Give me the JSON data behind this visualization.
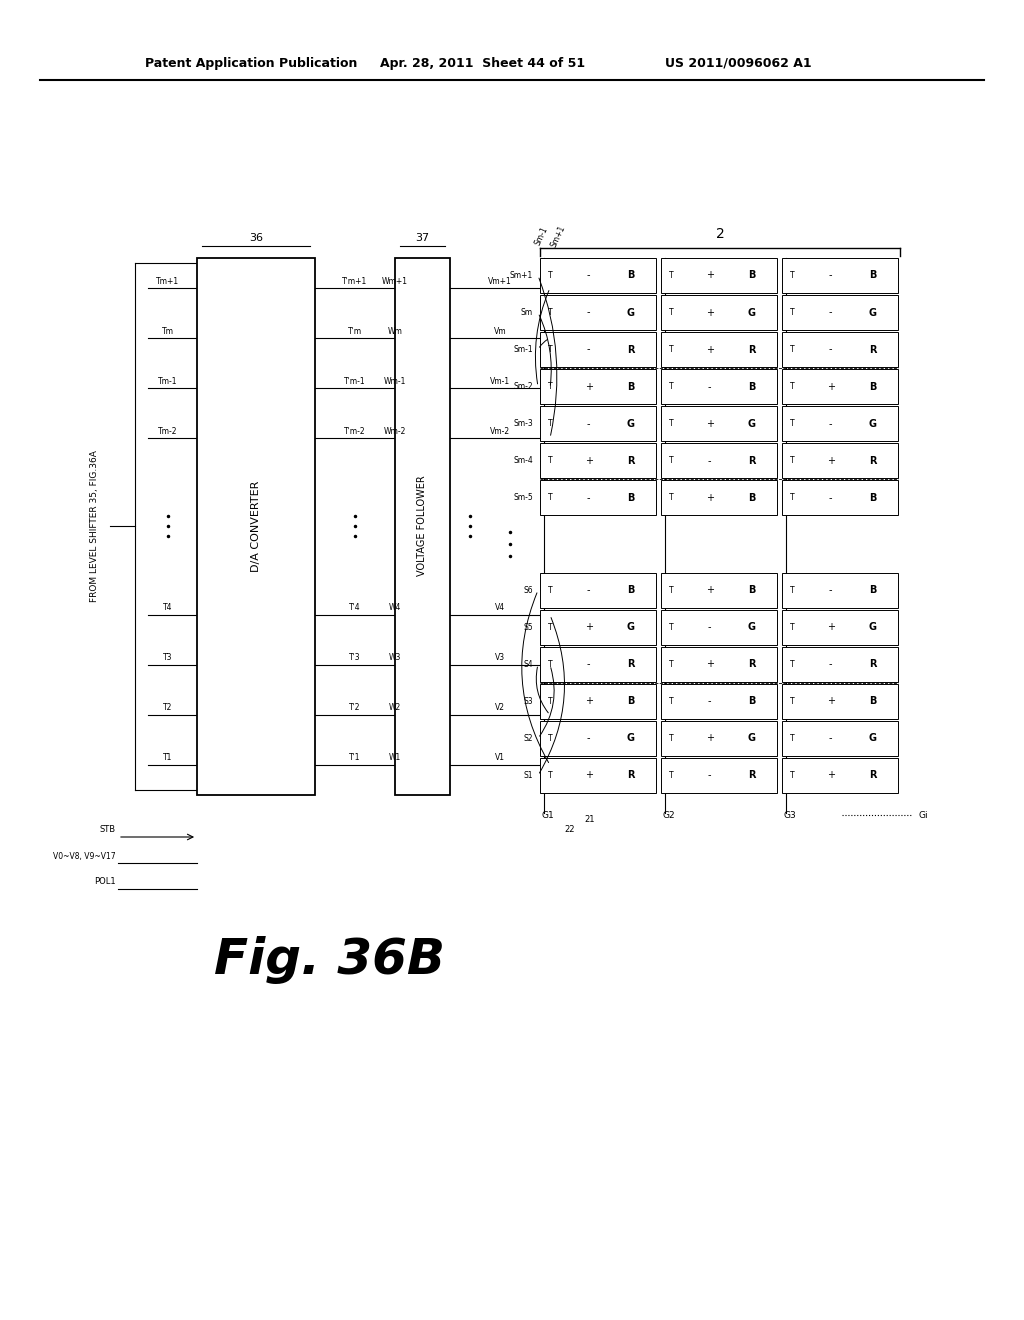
{
  "bg_color": "#ffffff",
  "header_left": "Patent Application Publication",
  "header_mid": "Apr. 28, 2011  Sheet 44 of 51",
  "header_right": "US 2011/0096062 A1",
  "fig_label": "Fig. 36B",
  "title_note": "FROM LEVEL SHIFTER 35, FIG.36A",
  "box36_label": "36",
  "box37_label": "37",
  "box2_label": "2",
  "da_label": "D/A CONVERTER",
  "vf_label": "VOLTAGE FOLLOWER",
  "stb_label": "STB",
  "v0v8_label": "V0~V8, V9~V17",
  "pol1_label": "POL1",
  "t_top": [
    "Tm+1",
    "Tm",
    "Tm-1",
    "Tm-2"
  ],
  "t_bot": [
    "T4",
    "T3",
    "T2",
    "T1"
  ],
  "t2_top": [
    "T'm+1",
    "T'm",
    "T'm-1",
    "T'm-2"
  ],
  "t2_bot": [
    "T'4",
    "T'3",
    "T'2",
    "T'1"
  ],
  "w_top": [
    "Wm+1",
    "Wm",
    "Wm-1",
    "Wm-2"
  ],
  "w_bot": [
    "W4",
    "W3",
    "W2",
    "W1"
  ],
  "v_top": [
    "Vm+1",
    "Vm",
    "Vm-1",
    "Vm-2"
  ],
  "v_bot": [
    "V4",
    "V3",
    "V2",
    "V1"
  ],
  "s_top": [
    "Sm+1",
    "Sm",
    "Sm-1",
    "Sm-2",
    "Sm-3",
    "Sm-4",
    "Sm-5"
  ],
  "s_bot": [
    "S6",
    "S5",
    "S4",
    "S3",
    "S2",
    "S1"
  ],
  "g_labels": [
    "G1",
    "G2",
    "G3",
    "Gi"
  ],
  "cell_signs_col0": [
    "-",
    "+",
    "-",
    "+",
    "-",
    "+",
    "-",
    "+",
    "-",
    "+",
    "-",
    "+",
    "-"
  ],
  "cell_signs_col1": [
    "+",
    "-",
    "+",
    "-",
    "+",
    "-",
    "+",
    "-",
    "+",
    "-",
    "+",
    "-",
    "+"
  ],
  "cell_colors": [
    "B",
    "G",
    "R",
    "B",
    "G",
    "R",
    "B",
    "G",
    "R",
    "B",
    "G",
    "R",
    "B"
  ]
}
